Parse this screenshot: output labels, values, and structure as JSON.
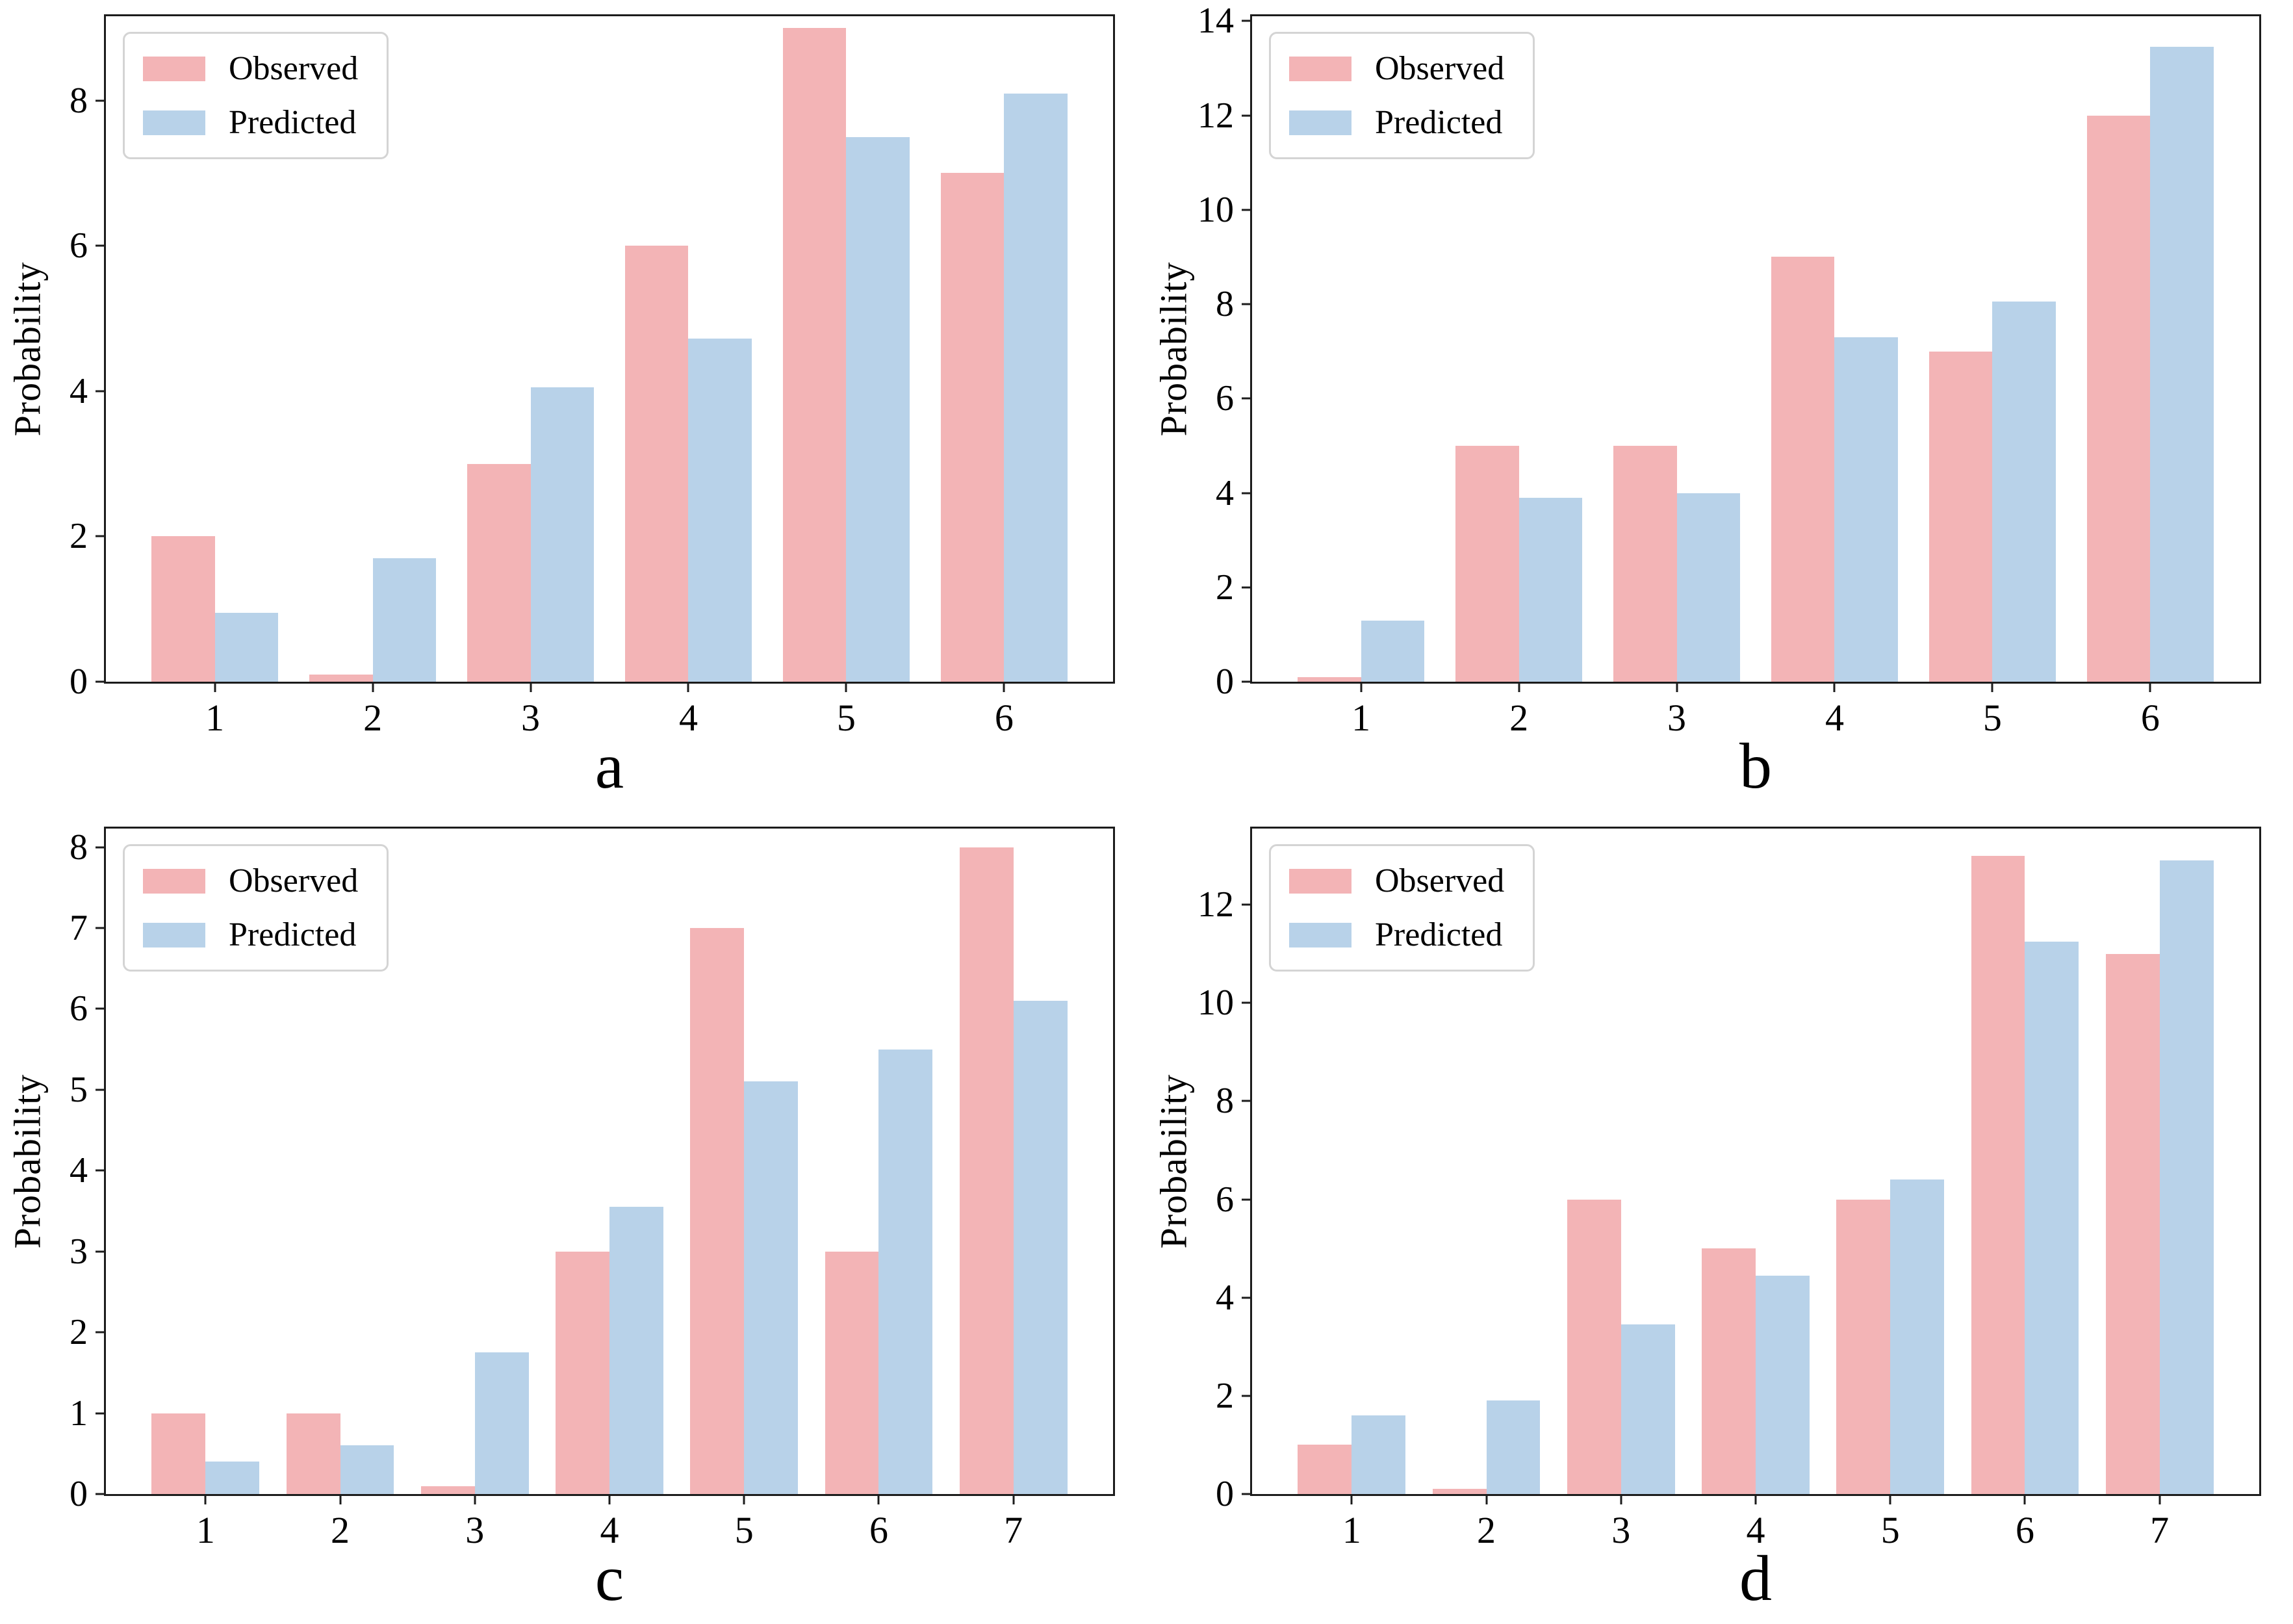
{
  "figure": {
    "background": "#ffffff",
    "axis_color": "#1c1c1c",
    "ylabel": "Probability",
    "legend_labels": [
      "Observed",
      "Predicted"
    ],
    "colors": {
      "observed": "#f3b4b6",
      "predicted": "#b8d2e9"
    }
  },
  "chart_data": [
    {
      "type": "bar",
      "panel_label": "a",
      "ylabel": "Probability",
      "xlabel": "a",
      "categories": [
        "1",
        "2",
        "3",
        "4",
        "5",
        "6"
      ],
      "series": [
        {
          "name": "Observed",
          "color": "#f3b4b6",
          "values": [
            2.0,
            0.1,
            3.0,
            6.0,
            9.0,
            7.0
          ]
        },
        {
          "name": "Predicted",
          "color": "#b8d2e9",
          "values": [
            0.95,
            1.7,
            4.05,
            4.72,
            7.5,
            8.1
          ]
        }
      ],
      "yticks": [
        0,
        2,
        4,
        6,
        8
      ],
      "ylim": [
        0,
        9.16
      ],
      "grid": false,
      "legend_position": "upper left"
    },
    {
      "type": "bar",
      "panel_label": "b",
      "ylabel": "Probability",
      "xlabel": "b",
      "categories": [
        "1",
        "2",
        "3",
        "4",
        "5",
        "6"
      ],
      "series": [
        {
          "name": "Observed",
          "color": "#f3b4b6",
          "values": [
            0.1,
            5.0,
            5.0,
            9.0,
            7.0,
            12.0
          ]
        },
        {
          "name": "Predicted",
          "color": "#b8d2e9",
          "values": [
            1.3,
            3.9,
            4.0,
            7.3,
            8.05,
            13.45
          ]
        }
      ],
      "yticks": [
        0,
        2,
        4,
        6,
        8,
        10,
        12,
        14
      ],
      "ylim": [
        0,
        14.1
      ],
      "grid": false,
      "legend_position": "upper left"
    },
    {
      "type": "bar",
      "panel_label": "c",
      "ylabel": "Probability",
      "xlabel": "c",
      "categories": [
        "1",
        "2",
        "3",
        "4",
        "5",
        "6",
        "7"
      ],
      "series": [
        {
          "name": "Observed",
          "color": "#f3b4b6",
          "values": [
            1.0,
            1.0,
            0.1,
            3.0,
            7.0,
            3.0,
            8.0
          ]
        },
        {
          "name": "Predicted",
          "color": "#b8d2e9",
          "values": [
            0.4,
            0.6,
            1.75,
            3.55,
            5.1,
            5.5,
            6.1
          ]
        }
      ],
      "yticks": [
        0,
        1,
        2,
        3,
        4,
        5,
        6,
        7,
        8
      ],
      "ylim": [
        0,
        8.23
      ],
      "grid": false,
      "legend_position": "upper left"
    },
    {
      "type": "bar",
      "panel_label": "d",
      "ylabel": "Probability",
      "xlabel": "d",
      "categories": [
        "1",
        "2",
        "3",
        "4",
        "5",
        "6",
        "7"
      ],
      "series": [
        {
          "name": "Observed",
          "color": "#f3b4b6",
          "values": [
            1.0,
            0.1,
            6.0,
            5.0,
            6.0,
            13.0,
            11.0
          ]
        },
        {
          "name": "Predicted",
          "color": "#b8d2e9",
          "values": [
            1.6,
            1.9,
            3.45,
            4.45,
            6.4,
            11.25,
            12.9
          ]
        }
      ],
      "yticks": [
        0,
        2,
        4,
        6,
        8,
        10,
        12
      ],
      "ylim": [
        0,
        13.55
      ],
      "grid": false,
      "legend_position": "upper left"
    }
  ]
}
